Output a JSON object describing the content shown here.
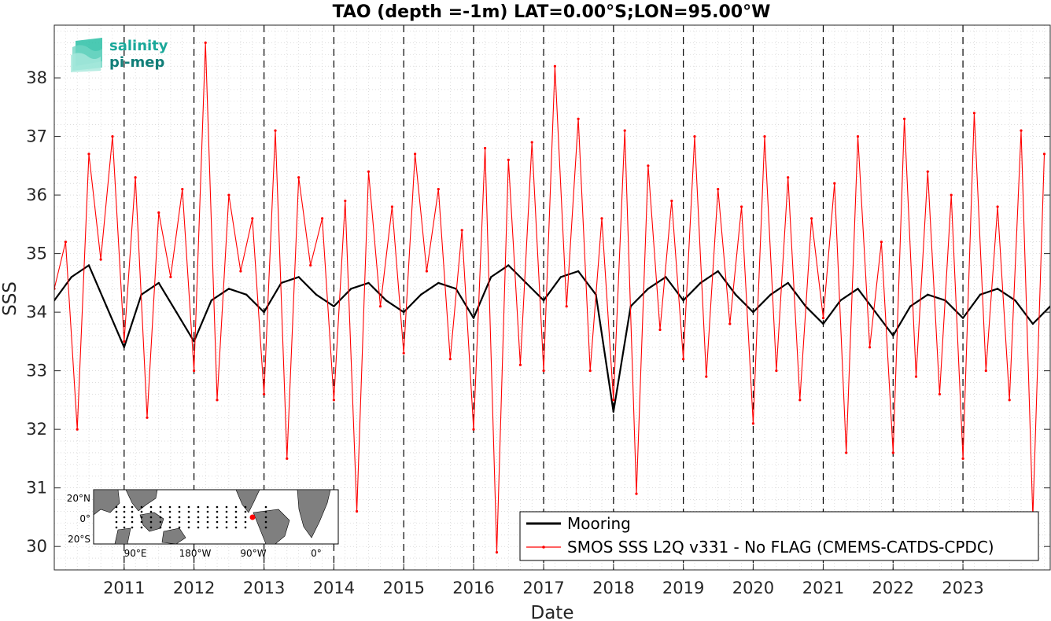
{
  "logo": {
    "line1": "salinity",
    "line2": "pi-mep",
    "color1": "#1aa89a",
    "color2": "#117e78"
  },
  "colors": {
    "mooring": "#000000",
    "smos": "#ff0000",
    "land": "#808080"
  },
  "inset_map": {
    "lat_labels": [
      "20°N",
      "0°",
      "20°S"
    ],
    "lon_labels": [
      "90°E",
      "180°W",
      "90°W",
      "0°"
    ],
    "marker_color": "#ff0000"
  },
  "chart_data": {
    "type": "line",
    "title": "TAO (depth =-1m) LAT=0.00°S;LON=95.00°W",
    "xlabel": "Date",
    "ylabel": "SSS",
    "xlim": [
      "2010-01-01",
      "2024-04-01"
    ],
    "ylim": [
      29.6,
      38.9
    ],
    "x_ticks": [
      "2011",
      "2012",
      "2013",
      "2014",
      "2015",
      "2016",
      "2017",
      "2018",
      "2019",
      "2020",
      "2021",
      "2022",
      "2023"
    ],
    "y_ticks": [
      "30",
      "31",
      "32",
      "33",
      "34",
      "35",
      "36",
      "37",
      "38"
    ],
    "grid": "minor dotted",
    "year_lines": "dashed",
    "legend": {
      "position": "bottom-right",
      "entries": [
        "Mooring",
        "SMOS SSS L2Q v331 - No FLAG  (CMEMS-CATDS-CPDC)"
      ]
    },
    "series": [
      {
        "name": "Mooring",
        "color": "#000000",
        "x": [
          "2010-01-01",
          "2010-04-01",
          "2010-07-01",
          "2010-10-01",
          "2011-01-01",
          "2011-04-01",
          "2011-07-01",
          "2011-10-01",
          "2012-01-01",
          "2012-04-01",
          "2012-07-01",
          "2012-10-01",
          "2013-01-01",
          "2013-04-01",
          "2013-07-01",
          "2013-10-01",
          "2014-01-01",
          "2014-04-01",
          "2014-07-01",
          "2014-10-01",
          "2015-01-01",
          "2015-04-01",
          "2015-07-01",
          "2015-10-01",
          "2016-01-01",
          "2016-04-01",
          "2016-07-01",
          "2016-10-01",
          "2017-01-01",
          "2017-04-01",
          "2017-07-01",
          "2017-10-01",
          "2018-01-01",
          "2018-04-01",
          "2018-07-01",
          "2018-10-01",
          "2019-01-01",
          "2019-04-01",
          "2019-07-01",
          "2019-10-01",
          "2020-01-01",
          "2020-04-01",
          "2020-07-01",
          "2020-10-01",
          "2021-01-01",
          "2021-04-01",
          "2021-07-01",
          "2021-10-01",
          "2022-01-01",
          "2022-04-01",
          "2022-07-01",
          "2022-10-01",
          "2023-01-01",
          "2023-04-01",
          "2023-07-01",
          "2023-10-01",
          "2024-01-01",
          "2024-04-01"
        ],
        "y": [
          34.2,
          34.6,
          34.8,
          34.1,
          33.4,
          34.3,
          34.5,
          34.0,
          33.5,
          34.2,
          34.4,
          34.3,
          34.0,
          34.5,
          34.6,
          34.3,
          34.1,
          34.4,
          34.5,
          34.2,
          34.0,
          34.3,
          34.5,
          34.4,
          33.9,
          34.6,
          34.8,
          34.5,
          34.2,
          34.6,
          34.7,
          34.3,
          32.3,
          34.1,
          34.4,
          34.6,
          34.2,
          34.5,
          34.7,
          34.3,
          34.0,
          34.3,
          34.5,
          34.1,
          33.8,
          34.2,
          34.4,
          34.0,
          33.6,
          34.1,
          34.3,
          34.2,
          33.9,
          34.3,
          34.4,
          34.2,
          33.8,
          34.1
        ]
      },
      {
        "name": "SMOS SSS L2Q v331 - No FLAG  (CMEMS-CATDS-CPDC)",
        "color": "#ff0000",
        "x": [
          "2010-01-01",
          "2010-03-01",
          "2010-05-01",
          "2010-07-01",
          "2010-09-01",
          "2010-11-01",
          "2011-01-01",
          "2011-03-01",
          "2011-05-01",
          "2011-07-01",
          "2011-09-01",
          "2011-11-01",
          "2012-01-01",
          "2012-03-01",
          "2012-05-01",
          "2012-07-01",
          "2012-09-01",
          "2012-11-01",
          "2013-01-01",
          "2013-03-01",
          "2013-05-01",
          "2013-07-01",
          "2013-09-01",
          "2013-11-01",
          "2014-01-01",
          "2014-03-01",
          "2014-05-01",
          "2014-07-01",
          "2014-09-01",
          "2014-11-01",
          "2015-01-01",
          "2015-03-01",
          "2015-05-01",
          "2015-07-01",
          "2015-09-01",
          "2015-11-01",
          "2016-01-01",
          "2016-03-01",
          "2016-05-01",
          "2016-07-01",
          "2016-09-01",
          "2016-11-01",
          "2017-01-01",
          "2017-03-01",
          "2017-05-01",
          "2017-07-01",
          "2017-09-01",
          "2017-11-01",
          "2018-01-01",
          "2018-03-01",
          "2018-05-01",
          "2018-07-01",
          "2018-09-01",
          "2018-11-01",
          "2019-01-01",
          "2019-03-01",
          "2019-05-01",
          "2019-07-01",
          "2019-09-01",
          "2019-11-01",
          "2020-01-01",
          "2020-03-01",
          "2020-05-01",
          "2020-07-01",
          "2020-09-01",
          "2020-11-01",
          "2021-01-01",
          "2021-03-01",
          "2021-05-01",
          "2021-07-01",
          "2021-09-01",
          "2021-11-01",
          "2022-01-01",
          "2022-03-01",
          "2022-05-01",
          "2022-07-01",
          "2022-09-01",
          "2022-11-01",
          "2023-01-01",
          "2023-03-01",
          "2023-05-01",
          "2023-07-01",
          "2023-09-01",
          "2023-11-01",
          "2024-01-01",
          "2024-03-01"
        ],
        "y": [
          34.4,
          35.2,
          32.0,
          36.7,
          34.9,
          37.0,
          33.5,
          36.3,
          32.2,
          35.7,
          34.6,
          36.1,
          33.0,
          38.6,
          32.5,
          36.0,
          34.7,
          35.6,
          32.6,
          37.1,
          31.5,
          36.3,
          34.8,
          35.6,
          32.5,
          35.9,
          30.6,
          36.4,
          34.1,
          35.8,
          33.3,
          36.7,
          34.7,
          36.1,
          33.2,
          35.4,
          32.0,
          36.8,
          29.9,
          36.6,
          33.1,
          36.9,
          33.0,
          38.2,
          34.1,
          37.3,
          33.0,
          35.6,
          32.5,
          37.1,
          30.9,
          36.5,
          33.7,
          35.9,
          33.2,
          37.0,
          32.9,
          36.1,
          33.8,
          35.8,
          32.1,
          37.0,
          33.0,
          36.3,
          32.5,
          35.6,
          33.9,
          36.2,
          31.6,
          37.0,
          33.4,
          35.2,
          31.6,
          37.3,
          32.9,
          36.4,
          32.6,
          36.0,
          31.5,
          37.4,
          33.0,
          35.8,
          32.5,
          37.1,
          30.5,
          36.7
        ]
      }
    ]
  }
}
